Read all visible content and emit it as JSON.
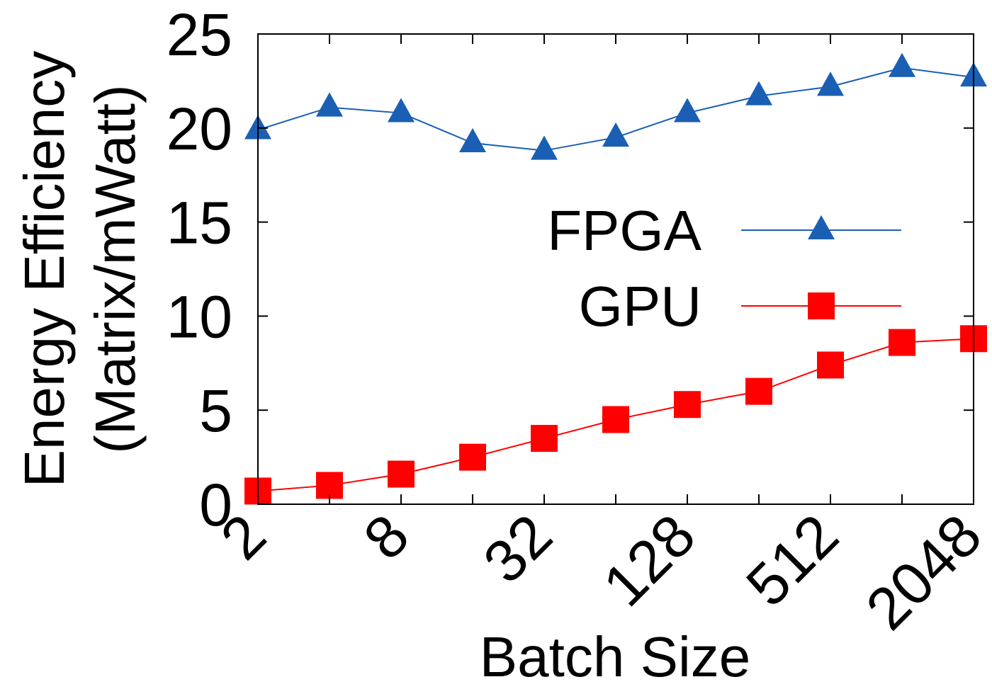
{
  "chart_data": {
    "type": "line",
    "title": "",
    "xlabel": "Batch Size",
    "ylabel": [
      "Energy Efficiency",
      "(Matrix/mWatt)"
    ],
    "x_scale": "log2",
    "x": [
      2,
      4,
      8,
      16,
      32,
      64,
      128,
      256,
      512,
      1024,
      2048
    ],
    "x_ticks": [
      2,
      8,
      32,
      128,
      512,
      2048
    ],
    "x_tick_labels": [
      "2",
      "8",
      "32",
      "128",
      "512",
      "2048"
    ],
    "xlim": [
      2,
      2048
    ],
    "ylim": [
      0,
      25
    ],
    "y_ticks": [
      0,
      5,
      10,
      15,
      20,
      25
    ],
    "y_tick_labels": [
      "0",
      "5",
      "10",
      "15",
      "20",
      "25"
    ],
    "grid": false,
    "legend_position": "center-right",
    "series": [
      {
        "name": "FPGA",
        "color": "#1a5fb4",
        "marker": "triangle",
        "values": [
          19.9,
          21.1,
          20.8,
          19.2,
          18.8,
          19.5,
          20.8,
          21.7,
          22.2,
          23.2,
          22.7
        ]
      },
      {
        "name": "GPU",
        "color": "#ff0000",
        "marker": "square",
        "values": [
          0.7,
          1.0,
          1.6,
          2.5,
          3.5,
          4.5,
          5.3,
          6.0,
          7.4,
          8.6,
          8.8
        ]
      }
    ]
  }
}
